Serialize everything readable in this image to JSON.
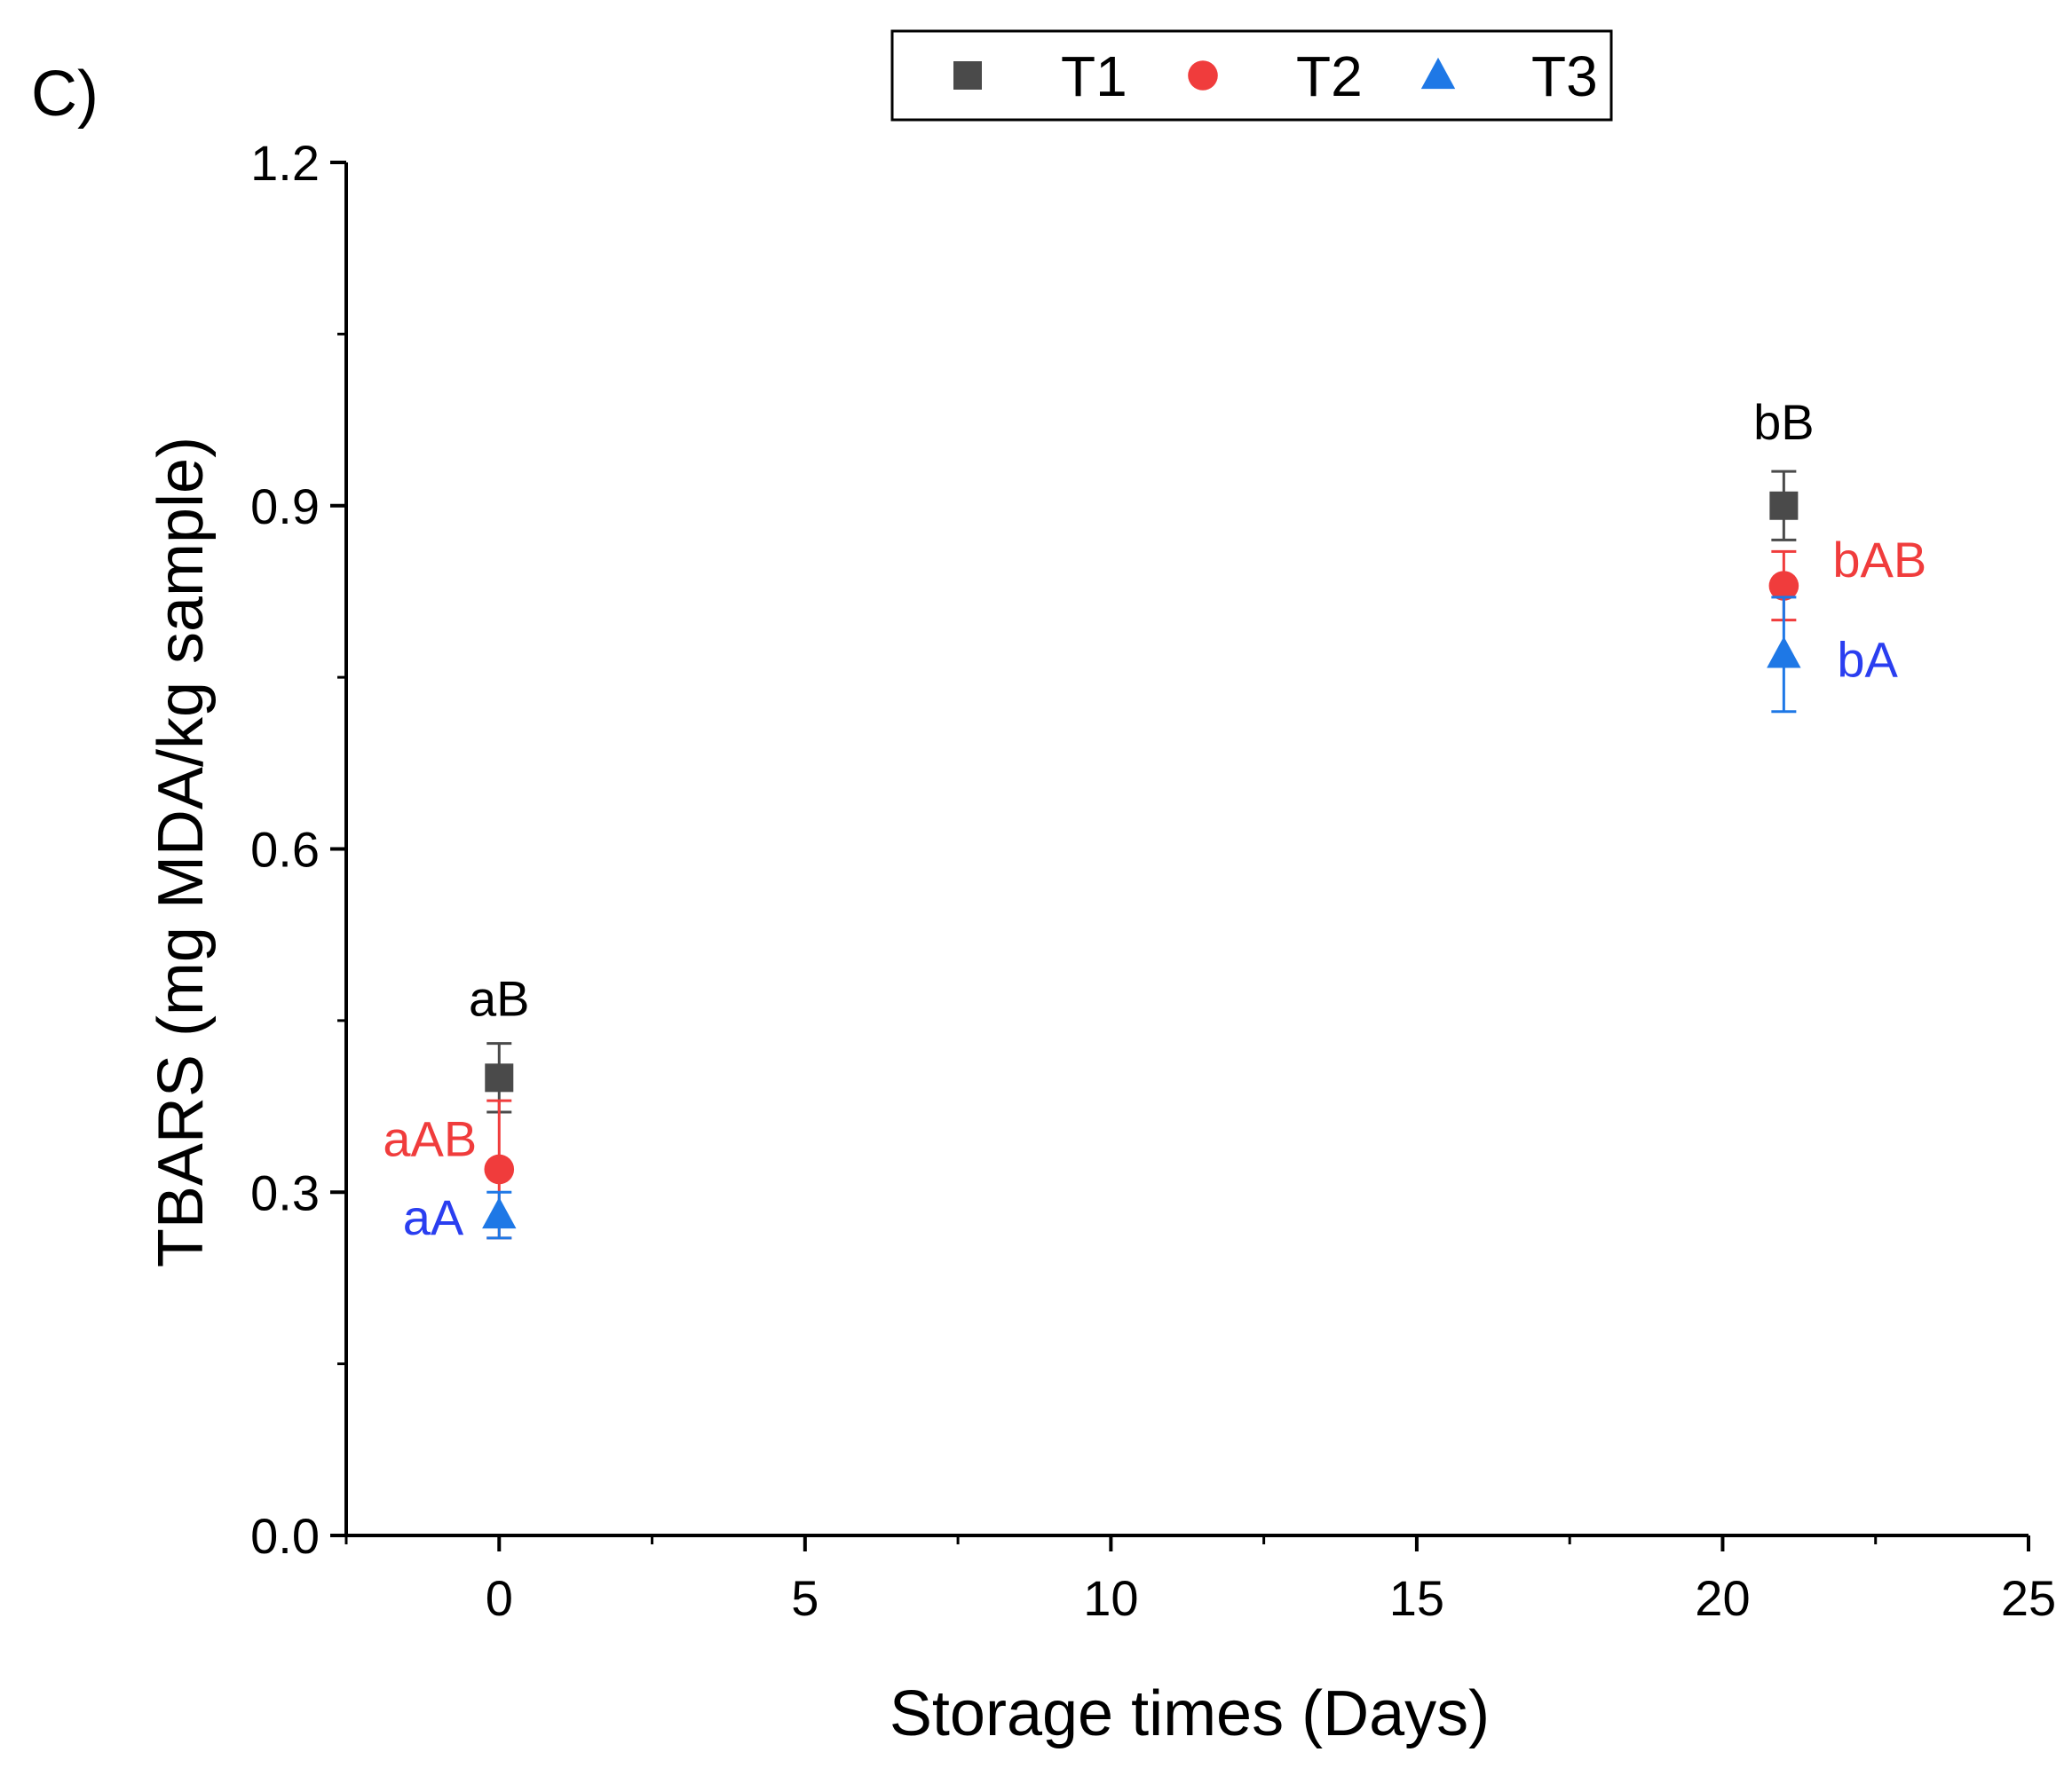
{
  "chart_data": {
    "type": "scatter",
    "panel_label": "C)",
    "title": "",
    "xlabel": "Storage times (Days)",
    "ylabel": "TBARS (mg MDA/kg sample)",
    "xlim": [
      -2.5,
      25
    ],
    "ylim": [
      0.0,
      1.2
    ],
    "x_major_ticks": [
      0,
      5,
      10,
      15,
      20,
      25
    ],
    "x_tick_labels": [
      "0",
      "5",
      "10",
      "15",
      "20",
      "25"
    ],
    "x_minor_ticks": [
      -2.5,
      2.5,
      7.5,
      12.5,
      17.5,
      22.5
    ],
    "y_major_ticks": [
      0.0,
      0.3,
      0.6,
      0.9,
      1.2
    ],
    "y_tick_labels": [
      "0.0",
      "0.3",
      "0.6",
      "0.9",
      "1.2"
    ],
    "y_minor_ticks": [
      0.15,
      0.45,
      0.75,
      1.05
    ],
    "grid": false,
    "legend_position": "top-center",
    "series": [
      {
        "name": "T1",
        "marker": "square",
        "color": "#4a4a4a",
        "label_color": "#000000",
        "points": [
          {
            "x": 0,
            "y": 0.4,
            "err": 0.03,
            "label": "aB"
          },
          {
            "x": 21,
            "y": 0.9,
            "err": 0.03,
            "label": "bB"
          }
        ]
      },
      {
        "name": "T2",
        "marker": "circle",
        "color": "#f03c3c",
        "label_color": "#f03c3c",
        "points": [
          {
            "x": 0,
            "y": 0.32,
            "err": 0.06,
            "label": "aAB"
          },
          {
            "x": 21,
            "y": 0.83,
            "err": 0.03,
            "label": "bAB"
          }
        ]
      },
      {
        "name": "T3",
        "marker": "triangle",
        "color": "#1e78e6",
        "label_color": "#2a3ef0",
        "points": [
          {
            "x": 0,
            "y": 0.28,
            "err": 0.02,
            "label": "aA"
          },
          {
            "x": 21,
            "y": 0.77,
            "err": 0.05,
            "label": "bA"
          }
        ]
      }
    ]
  }
}
